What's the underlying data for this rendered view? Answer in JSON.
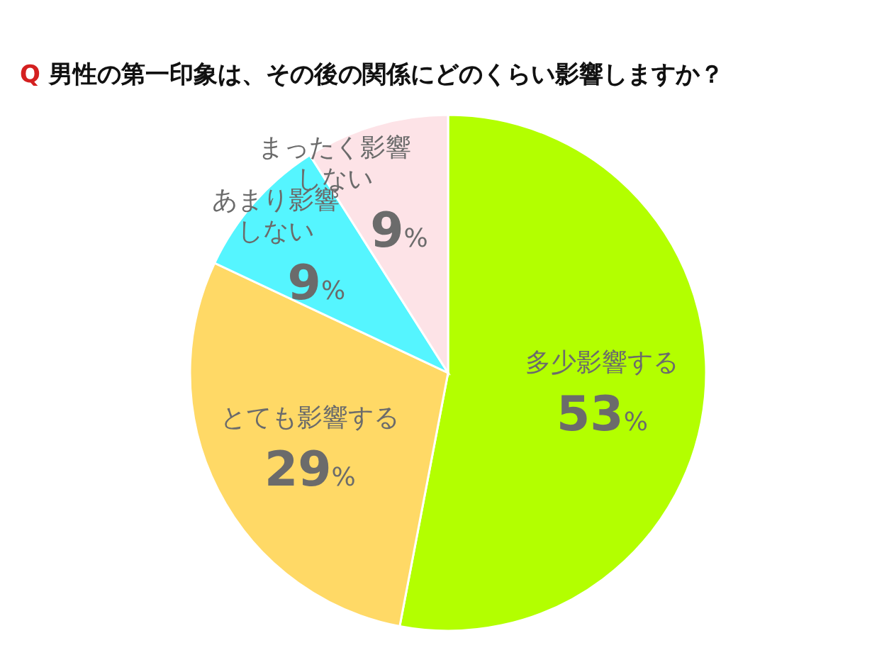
{
  "chart_data": {
    "type": "pie",
    "title": "Q 男性の第一印象は、その後の関係にどのくらい影響しますか？",
    "categories": [
      "多少影響する",
      "とても影響する",
      "あまり影響しない",
      "まったく影響しない"
    ],
    "values": [
      53,
      29,
      9,
      9
    ],
    "value_labels": [
      "53%",
      "29%",
      "9%",
      "9%"
    ],
    "colors": [
      "#b3ff00",
      "#ffd966",
      "#55f5ff",
      "#fde3e7"
    ],
    "data_labels": true
  }
}
